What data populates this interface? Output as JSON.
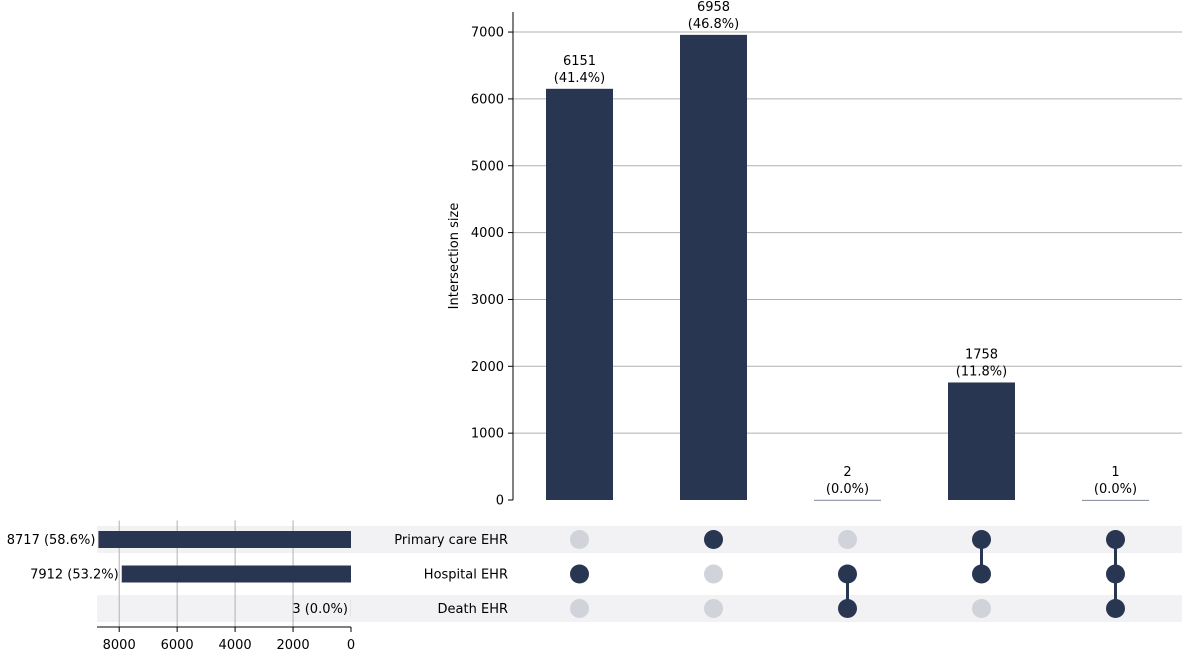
{
  "chart_data": {
    "type": "upset",
    "colors": {
      "bar": "#283651",
      "dot_active": "#283651",
      "dot_inactive": "#d0d3da",
      "stripe": "#f2f2f4",
      "grid": "#b0b0b0"
    },
    "sets": [
      {
        "name": "Primary care EHR",
        "size": 8717,
        "size_label": "8717 (58.6%)"
      },
      {
        "name": "Hospital EHR",
        "size": 7912,
        "size_label": "7912 (53.2%)"
      },
      {
        "name": "Death EHR",
        "size": 3,
        "size_label": "3 (0.0%)"
      }
    ],
    "intersections": [
      {
        "members": [
          1
        ],
        "size": 6151,
        "count_label": "6151",
        "percent_label": "(41.4%)"
      },
      {
        "members": [
          0
        ],
        "size": 6958,
        "count_label": "6958",
        "percent_label": "(46.8%)"
      },
      {
        "members": [
          1,
          2
        ],
        "size": 2,
        "count_label": "2",
        "percent_label": "(0.0%)"
      },
      {
        "members": [
          0,
          1
        ],
        "size": 1758,
        "count_label": "1758",
        "percent_label": "(11.8%)"
      },
      {
        "members": [
          0,
          1,
          2
        ],
        "size": 1,
        "count_label": "1",
        "percent_label": "(0.0%)"
      }
    ],
    "intersection_axis": {
      "label": "Intersection size",
      "range": [
        0,
        7300
      ],
      "ticks": [
        0,
        1000,
        2000,
        3000,
        4000,
        5000,
        6000,
        7000
      ],
      "grid": true
    },
    "set_size_axis": {
      "range": [
        8700,
        0
      ],
      "ticks": [
        8000,
        6000,
        4000,
        2000,
        0
      ],
      "grid": true
    }
  }
}
